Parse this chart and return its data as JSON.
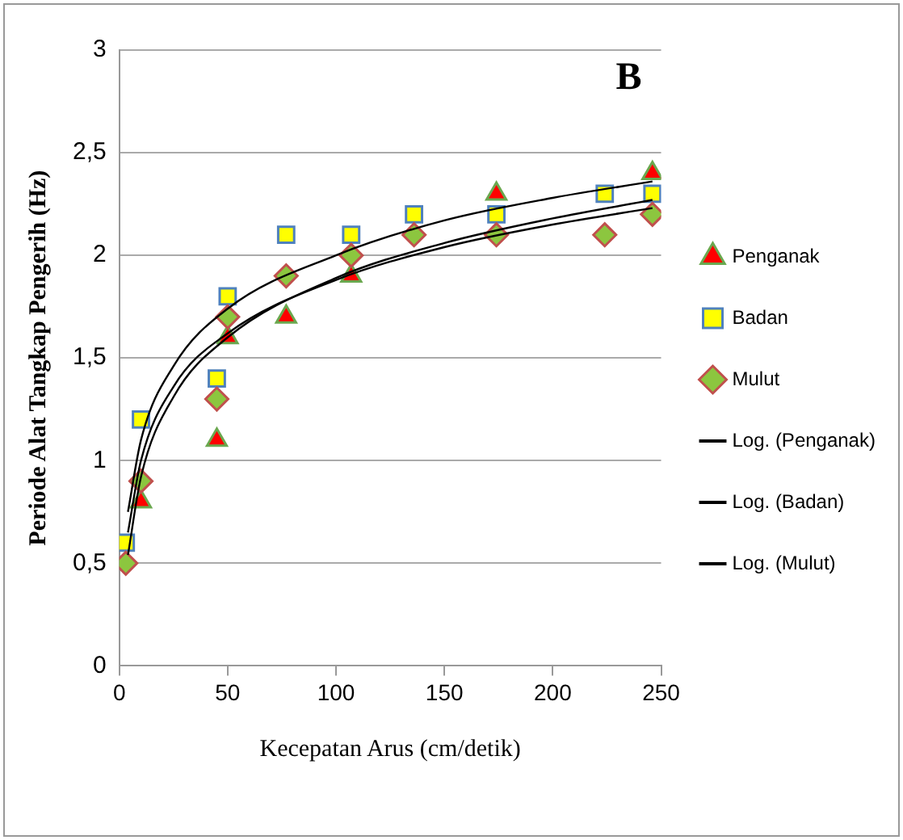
{
  "chart_data": {
    "type": "scatter",
    "xlabel": "Kecepatan Arus (cm/detik)",
    "ylabel": "Periode Alat Tangkap Pengerih (Hz)",
    "annotations": [
      "B"
    ],
    "x": [
      3,
      10,
      45,
      50,
      77,
      107,
      136,
      174,
      224,
      246
    ],
    "series": [
      {
        "name": "Penganak",
        "color": "#ff0000",
        "marker": "triangle",
        "values": [
          null,
          0.8,
          1.1,
          1.6,
          1.7,
          1.9,
          null,
          2.3,
          null,
          2.4
        ]
      },
      {
        "name": "Badan",
        "color": "#ffff00",
        "marker": "square",
        "values": [
          0.6,
          1.2,
          1.4,
          1.8,
          2.1,
          2.1,
          2.2,
          2.2,
          2.3,
          2.3
        ]
      },
      {
        "name": "Mulut",
        "color": "#8cc63f",
        "marker": "diamond",
        "values": [
          0.5,
          0.9,
          1.3,
          1.7,
          1.9,
          2.0,
          2.1,
          2.1,
          2.1,
          2.2
        ]
      },
      {
        "name": "Log. (Penganak)",
        "type": "line",
        "color": "#000000",
        "x": [
          4,
          10,
          25,
          50,
          100,
          150,
          200,
          246
        ],
        "values": [
          0.54,
          0.92,
          1.31,
          1.6,
          1.89,
          2.06,
          2.18,
          2.27
        ]
      },
      {
        "name": "Log. (Badan)",
        "type": "line",
        "color": "#000000",
        "x": [
          4,
          10,
          25,
          50,
          100,
          150,
          200,
          246
        ],
        "values": [
          0.75,
          1.1,
          1.46,
          1.74,
          2.0,
          2.17,
          2.28,
          2.36
        ]
      },
      {
        "name": "Log. (Mulut)",
        "type": "line",
        "color": "#000000",
        "x": [
          4,
          10,
          25,
          50,
          100,
          150,
          200,
          246
        ],
        "values": [
          0.65,
          1.0,
          1.36,
          1.62,
          1.88,
          2.04,
          2.15,
          2.23
        ]
      }
    ],
    "xlim": [
      0,
      250
    ],
    "xticks": [
      0,
      50,
      100,
      150,
      200,
      250
    ],
    "ylim": [
      0,
      3
    ],
    "yticks": [
      0,
      {
        "value": 0.5,
        "label": "0,5"
      },
      1,
      {
        "value": 1.5,
        "label": "1,5"
      },
      2,
      {
        "value": 2.5,
        "label": "2,5"
      },
      3
    ],
    "grid": "y",
    "legend": "right"
  }
}
